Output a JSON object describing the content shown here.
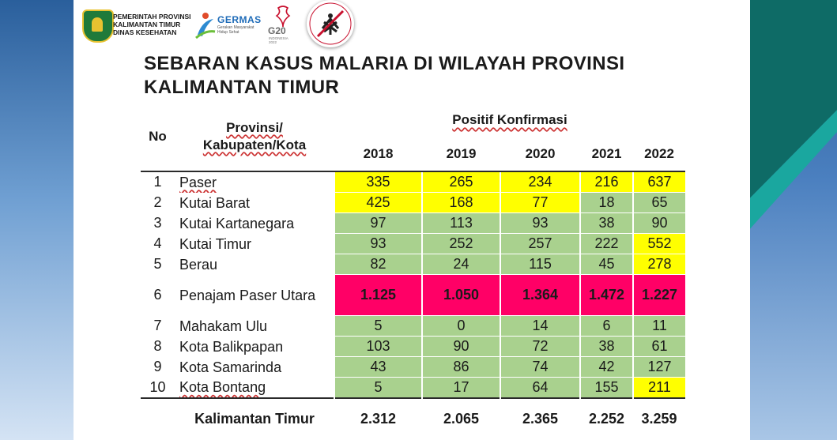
{
  "header": {
    "gov_lines": [
      "PEMERINTAH PROVINSI",
      "KALIMANTAN TIMUR",
      "DINAS KESEHATAN"
    ],
    "germas_title": "GERMAS",
    "germas_sub": "Gerakan Masyarakat Hidup Sehat",
    "g20_text": "G20",
    "g20_sub": "INDONESIA 2022",
    "badge_text": "Bebas Malaria"
  },
  "title_lines": [
    "SEBARAN KASUS MALARIA  DI WILAYAH PROVINSI",
    "KALIMANTAN TIMUR"
  ],
  "table": {
    "col_no": "No",
    "col_region_line1": "Provinsi/",
    "col_region_line2": "Kabupaten/Kota",
    "group_header": "Positif Konfirmasi",
    "years": [
      "2018",
      "2019",
      "2020",
      "2021",
      "2022"
    ],
    "rows": [
      {
        "no": "1",
        "name": "Paser",
        "values": [
          "335",
          "265",
          "234",
          "216",
          "637"
        ],
        "colors": [
          "y",
          "y",
          "y",
          "y",
          "y"
        ]
      },
      {
        "no": "2",
        "name": "Kutai Barat",
        "values": [
          "425",
          "168",
          "77",
          "18",
          "65"
        ],
        "colors": [
          "y",
          "y",
          "y",
          "g",
          "g"
        ]
      },
      {
        "no": "3",
        "name": "Kutai Kartanegara",
        "values": [
          "97",
          "113",
          "93",
          "38",
          "90"
        ],
        "colors": [
          "g",
          "g",
          "g",
          "g",
          "g"
        ]
      },
      {
        "no": "4",
        "name": "Kutai Timur",
        "values": [
          "93",
          "252",
          "257",
          "222",
          "552"
        ],
        "colors": [
          "g",
          "g",
          "g",
          "g",
          "y"
        ]
      },
      {
        "no": "5",
        "name": "Berau",
        "values": [
          "82",
          "24",
          "115",
          "45",
          "278"
        ],
        "colors": [
          "g",
          "g",
          "g",
          "g",
          "y"
        ]
      },
      {
        "no": "6",
        "name": "Penajam Paser Utara",
        "values": [
          "1.125",
          "1.050",
          "1.364",
          "1.472",
          "1.227"
        ],
        "colors": [
          "r",
          "r",
          "r",
          "r",
          "r"
        ]
      },
      {
        "no": "7",
        "name": "Mahakam Ulu",
        "values": [
          "5",
          "0",
          "14",
          "6",
          "11"
        ],
        "colors": [
          "g",
          "g",
          "g",
          "g",
          "g"
        ]
      },
      {
        "no": "8",
        "name": "Kota Balikpapan",
        "values": [
          "103",
          "90",
          "72",
          "38",
          "61"
        ],
        "colors": [
          "g",
          "g",
          "g",
          "g",
          "g"
        ]
      },
      {
        "no": "9",
        "name": "Kota Samarinda",
        "values": [
          "43",
          "86",
          "74",
          "42",
          "127"
        ],
        "colors": [
          "g",
          "g",
          "g",
          "g",
          "g"
        ]
      },
      {
        "no": "10",
        "name": "Kota Bontang",
        "values": [
          "5",
          "17",
          "64",
          "155",
          "211"
        ],
        "colors": [
          "g",
          "g",
          "g",
          "g",
          "y"
        ]
      }
    ],
    "total_label": "Kalimantan Timur",
    "totals": [
      "2.312",
      "2.065",
      "2.365",
      "2.252",
      "3.259"
    ]
  },
  "colors": {
    "yellow": "#ffff00",
    "green": "#a9d18e",
    "pink": "#ff0066"
  }
}
